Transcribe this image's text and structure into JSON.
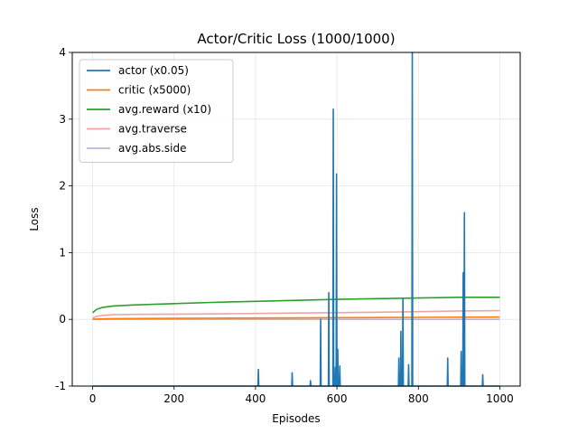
{
  "chart_data": {
    "type": "line",
    "title": "Actor/Critic Loss (1000/1000)",
    "xlabel": "Episodes",
    "ylabel": "Loss",
    "xlim": [
      -50,
      1050
    ],
    "ylim": [
      -1,
      4
    ],
    "xticks": [
      0,
      200,
      400,
      600,
      800,
      1000
    ],
    "yticks": [
      -1,
      0,
      1,
      2,
      3,
      4
    ],
    "grid": true,
    "legend_position": "top-left",
    "series": [
      {
        "name": "actor (x0.05)",
        "color": "#1f77b4",
        "baseline": -1.0,
        "spikes": [
          {
            "x": 407,
            "y": -0.75
          },
          {
            "x": 490,
            "y": -0.8
          },
          {
            "x": 535,
            "y": -0.92
          },
          {
            "x": 560,
            "y": 0.0
          },
          {
            "x": 580,
            "y": 0.4
          },
          {
            "x": 591,
            "y": 3.15
          },
          {
            "x": 596,
            "y": -0.72
          },
          {
            "x": 599,
            "y": 2.18
          },
          {
            "x": 602,
            "y": -0.45
          },
          {
            "x": 607,
            "y": -0.7
          },
          {
            "x": 752,
            "y": -0.58
          },
          {
            "x": 757,
            "y": -0.18
          },
          {
            "x": 762,
            "y": 0.3
          },
          {
            "x": 776,
            "y": -0.68
          },
          {
            "x": 785,
            "y": 4.0
          },
          {
            "x": 872,
            "y": -0.58
          },
          {
            "x": 905,
            "y": -0.48
          },
          {
            "x": 910,
            "y": 0.7
          },
          {
            "x": 913,
            "y": 1.6
          },
          {
            "x": 958,
            "y": -0.83
          }
        ]
      },
      {
        "name": "critic (x5000)",
        "color": "#ff7f0e",
        "x": [
          0,
          10,
          50,
          100,
          200,
          300,
          400,
          500,
          600,
          700,
          800,
          900,
          1000
        ],
        "y": [
          0.0,
          0.005,
          0.01,
          0.012,
          0.015,
          0.018,
          0.02,
          0.022,
          0.025,
          0.027,
          0.03,
          0.032,
          0.034
        ]
      },
      {
        "name": "avg.reward (x10)",
        "color": "#2ca02c",
        "x": [
          0,
          10,
          25,
          50,
          100,
          150,
          200,
          300,
          400,
          500,
          600,
          700,
          800,
          900,
          1000
        ],
        "y": [
          0.1,
          0.15,
          0.18,
          0.2,
          0.215,
          0.225,
          0.235,
          0.255,
          0.27,
          0.285,
          0.3,
          0.31,
          0.32,
          0.33,
          0.33
        ]
      },
      {
        "name": "avg.traverse",
        "color": "#f0a3a3",
        "x": [
          0,
          10,
          25,
          50,
          100,
          200,
          300,
          400,
          500,
          600,
          700,
          800,
          900,
          1000
        ],
        "y": [
          0.02,
          0.045,
          0.06,
          0.07,
          0.075,
          0.078,
          0.082,
          0.088,
          0.095,
          0.1,
          0.107,
          0.115,
          0.125,
          0.13
        ]
      },
      {
        "name": "avg.abs.side",
        "color": "#c5b0d5",
        "x": [
          0,
          200,
          400,
          600,
          800,
          1000
        ],
        "y": [
          0.0,
          0.0,
          0.0,
          0.0,
          0.0,
          0.0
        ]
      }
    ]
  }
}
